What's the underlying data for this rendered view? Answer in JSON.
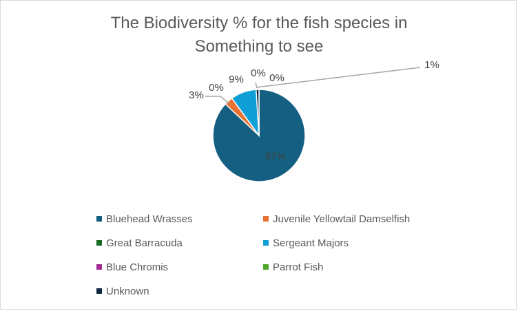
{
  "title_lines": [
    "The Biodiversity % for the fish species in",
    "Something to see"
  ],
  "chart_data": {
    "type": "pie",
    "title": "The Biodiversity % for the fish species in Something to see",
    "categories": [
      "Bluehead Wrasses",
      "Juvenile Yellowtail Damselfish",
      "Great Barracuda",
      "Sergeant Majors",
      "Blue Chromis",
      "Parrot Fish",
      "Unknown"
    ],
    "values": [
      87,
      3,
      0,
      9,
      0,
      0,
      1
    ],
    "data_labels": [
      "87%",
      "3%",
      "0%",
      "9%",
      "0%",
      "0%",
      "1%"
    ],
    "colors": [
      "#156082",
      "#e97132",
      "#196b24",
      "#0f9ed5",
      "#a02b93",
      "#4ea72e",
      "#0e2841"
    ],
    "legend_position": "bottom"
  }
}
